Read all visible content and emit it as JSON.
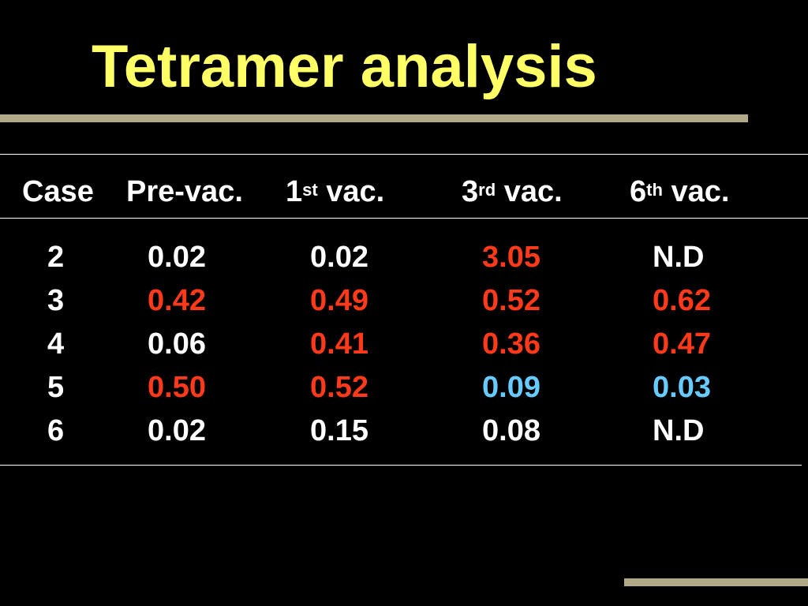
{
  "title": "Tetramer analysis",
  "colors": {
    "title": "#ffff66",
    "normal": "#ffffff",
    "elevated": "#ff3a1a",
    "low": "#66ccff",
    "accent_rule": "#b2a986"
  },
  "table": {
    "headers": {
      "case": "Case",
      "pre": "Pre-vac.",
      "v1_num": "1",
      "v1_sup": "st",
      "v1_rest": " vac.",
      "v3_num": "3",
      "v3_sup": "rd",
      "v3_rest": " vac.",
      "v6_num": "6",
      "v6_sup": "th",
      "v6_rest": " vac."
    },
    "rows": [
      {
        "case": "2",
        "pre": "0.02",
        "v1": "0.02",
        "v3": "3.05",
        "v6": "N.D",
        "pre_color": "normal",
        "v1_color": "normal",
        "v3_color": "elevated",
        "v6_color": "normal"
      },
      {
        "case": "3",
        "pre": "0.42",
        "v1": "0.49",
        "v3": "0.52",
        "v6": "0.62",
        "pre_color": "elevated",
        "v1_color": "elevated",
        "v3_color": "elevated",
        "v6_color": "elevated"
      },
      {
        "case": "4",
        "pre": "0.06",
        "v1": "0.41",
        "v3": "0.36",
        "v6": "0.47",
        "pre_color": "normal",
        "v1_color": "elevated",
        "v3_color": "elevated",
        "v6_color": "elevated"
      },
      {
        "case": "5",
        "pre": "0.50",
        "v1": "0.52",
        "v3": "0.09",
        "v6": "0.03",
        "pre_color": "elevated",
        "v1_color": "elevated",
        "v3_color": "low",
        "v6_color": "low"
      },
      {
        "case": "6",
        "pre": "0.02",
        "v1": "0.15",
        "v3": "0.08",
        "v6": "N.D",
        "pre_color": "normal",
        "v1_color": "normal",
        "v3_color": "normal",
        "v6_color": "normal"
      }
    ]
  }
}
